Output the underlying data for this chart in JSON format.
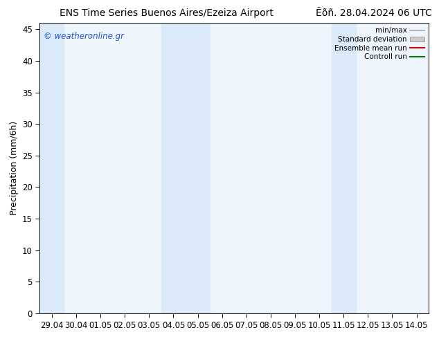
{
  "title_left": "ENS Time Series Buenos Aires/Ezeiza Airport",
  "title_right": "Ẽõñ. 28.04.2024 06 UTC",
  "ylabel": "Precipitation (mm/6h)",
  "ylim": [
    0,
    46
  ],
  "yticks": [
    0,
    5,
    10,
    15,
    20,
    25,
    30,
    35,
    40,
    45
  ],
  "xtick_labels": [
    "29.04",
    "30.04",
    "01.05",
    "02.05",
    "03.05",
    "04.05",
    "05.05",
    "06.05",
    "07.05",
    "08.05",
    "09.05",
    "10.05",
    "11.05",
    "12.05",
    "13.05",
    "14.05"
  ],
  "band_color": "#daeaf8",
  "plot_bg_color": "#eef5fc",
  "background_color": "#ffffff",
  "watermark": "© weatheronline.gr",
  "watermark_color": "#2255cc",
  "legend_items": [
    "min/max",
    "Standard deviation",
    "Ensemble mean run",
    "Controll run"
  ],
  "legend_line_color": "#aaaaaa",
  "legend_patch_color": "#cccccc",
  "legend_red": "#cc0000",
  "legend_green": "#007700",
  "title_fontsize": 10,
  "axis_fontsize": 9,
  "tick_fontsize": 8.5
}
